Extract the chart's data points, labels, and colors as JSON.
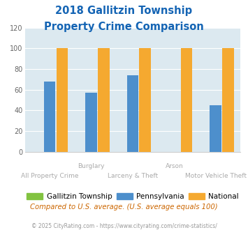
{
  "title_line1": "2018 Gallitzin Township",
  "title_line2": "Property Crime Comparison",
  "categories": [
    "All Property Crime",
    "Burglary",
    "Larceny & Theft",
    "Arson",
    "Motor Vehicle Theft"
  ],
  "gallitzin": [
    0,
    0,
    0,
    0,
    0
  ],
  "pennsylvania": [
    68,
    57,
    74,
    0,
    45
  ],
  "national": [
    100,
    100,
    100,
    100,
    100
  ],
  "colors": {
    "gallitzin": "#82c341",
    "pennsylvania": "#4d8fcc",
    "national": "#f5a930"
  },
  "ylim": [
    0,
    120
  ],
  "yticks": [
    0,
    20,
    40,
    60,
    80,
    100,
    120
  ],
  "legend_labels": [
    "Gallitzin Township",
    "Pennsylvania",
    "National"
  ],
  "footnote1": "Compared to U.S. average. (U.S. average equals 100)",
  "footnote2": "© 2025 CityRating.com - https://www.cityrating.com/crime-statistics/",
  "title_color": "#1464b4",
  "footnote1_color": "#cc6600",
  "footnote2_color": "#999999",
  "bg_color": "#dce9f0",
  "xlabel_color": "#aaaaaa",
  "grid_color": "#ffffff",
  "spine_color": "#cccccc"
}
